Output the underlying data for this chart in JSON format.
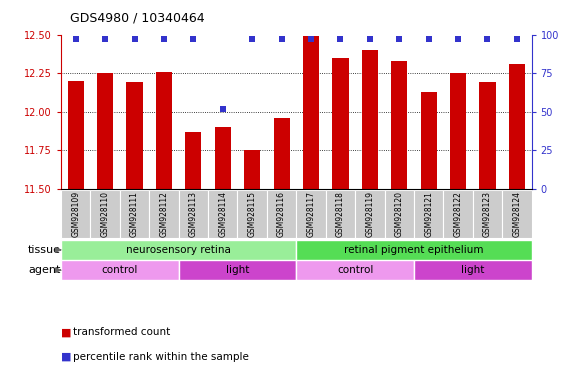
{
  "title": "GDS4980 / 10340464",
  "samples": [
    "GSM928109",
    "GSM928110",
    "GSM928111",
    "GSM928112",
    "GSM928113",
    "GSM928114",
    "GSM928115",
    "GSM928116",
    "GSM928117",
    "GSM928118",
    "GSM928119",
    "GSM928120",
    "GSM928121",
    "GSM928122",
    "GSM928123",
    "GSM928124"
  ],
  "bar_values": [
    12.2,
    12.25,
    12.19,
    12.26,
    11.87,
    11.9,
    11.75,
    11.96,
    12.49,
    12.35,
    12.4,
    12.33,
    12.13,
    12.25,
    12.19,
    12.31
  ],
  "percentile_values": [
    97,
    97,
    97,
    97,
    97,
    52,
    97,
    97,
    97,
    97,
    97,
    97,
    97,
    97,
    97,
    97
  ],
  "bar_color": "#cc0000",
  "percentile_color": "#3333cc",
  "ylim_left": [
    11.5,
    12.5
  ],
  "ylim_right": [
    0,
    100
  ],
  "yticks_left": [
    11.5,
    11.75,
    12.0,
    12.25,
    12.5
  ],
  "yticks_right": [
    0,
    25,
    50,
    75,
    100
  ],
  "tissue_groups": [
    {
      "label": "neurosensory retina",
      "start": 0,
      "end": 8,
      "color": "#99ee99"
    },
    {
      "label": "retinal pigment epithelium",
      "start": 8,
      "end": 16,
      "color": "#55dd55"
    }
  ],
  "agent_groups": [
    {
      "label": "control",
      "start": 0,
      "end": 4,
      "color": "#ee99ee"
    },
    {
      "label": "light",
      "start": 4,
      "end": 8,
      "color": "#cc44cc"
    },
    {
      "label": "control",
      "start": 8,
      "end": 12,
      "color": "#ee99ee"
    },
    {
      "label": "light",
      "start": 12,
      "end": 16,
      "color": "#cc44cc"
    }
  ],
  "legend_items": [
    {
      "label": "transformed count",
      "color": "#cc0000"
    },
    {
      "label": "percentile rank within the sample",
      "color": "#3333cc"
    }
  ],
  "tissue_label": "tissue",
  "agent_label": "agent",
  "bar_width": 0.55,
  "sample_box_color": "#cccccc",
  "title_fontsize": 9,
  "bar_bottom": 11.5
}
